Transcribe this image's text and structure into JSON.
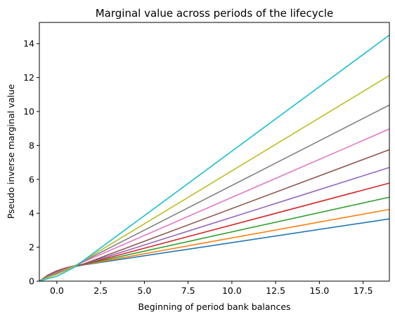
{
  "chart_data": {
    "type": "line",
    "title": "Marginal value across periods of the lifecycle",
    "xlabel": "Beginning of period bank balances",
    "ylabel": "Pseudo inverse marginal value",
    "xlim": [
      -1.0,
      19.0
    ],
    "ylim": [
      0,
      15.25
    ],
    "xticks": [
      0.0,
      2.5,
      5.0,
      7.5,
      10.0,
      12.5,
      15.0,
      17.5
    ],
    "xtick_labels": [
      "0.0",
      "2.5",
      "5.0",
      "7.5",
      "10.0",
      "12.5",
      "15.0",
      "17.5"
    ],
    "yticks": [
      0,
      2,
      4,
      6,
      8,
      10,
      12,
      14
    ],
    "ytick_labels": [
      "0",
      "2",
      "4",
      "6",
      "8",
      "10",
      "12",
      "14"
    ],
    "grid": false,
    "legend": "none",
    "series": [
      {
        "color": "#1f77b4",
        "x": [
          -1.0,
          -0.5,
          0.0,
          0.5,
          1.0,
          1.5,
          19.0
        ],
        "y": [
          0.0,
          0.32,
          0.55,
          0.72,
          0.85,
          0.95,
          3.67
        ]
      },
      {
        "color": "#ff7f0e",
        "x": [
          -1.0,
          -0.5,
          0.0,
          0.5,
          1.0,
          1.5,
          19.0
        ],
        "y": [
          0.0,
          0.33,
          0.57,
          0.74,
          0.87,
          0.96,
          4.23
        ]
      },
      {
        "color": "#2ca02c",
        "x": [
          -1.0,
          -0.5,
          0.0,
          0.5,
          1.0,
          1.5,
          19.0
        ],
        "y": [
          0.0,
          0.34,
          0.58,
          0.75,
          0.88,
          0.97,
          4.95
        ]
      },
      {
        "color": "#d62728",
        "x": [
          -1.0,
          -0.5,
          0.0,
          0.5,
          1.0,
          1.5,
          19.0
        ],
        "y": [
          0.0,
          0.35,
          0.59,
          0.76,
          0.89,
          0.98,
          5.78
        ]
      },
      {
        "color": "#9467bd",
        "x": [
          -1.0,
          -0.5,
          0.0,
          0.5,
          1.0,
          1.5,
          19.0
        ],
        "y": [
          0.0,
          0.36,
          0.6,
          0.77,
          0.9,
          0.99,
          6.7
        ]
      },
      {
        "color": "#8c564b",
        "x": [
          -1.0,
          -0.5,
          0.0,
          0.5,
          1.0,
          1.5,
          19.0
        ],
        "y": [
          0.0,
          0.37,
          0.61,
          0.78,
          0.91,
          1.0,
          7.75
        ]
      },
      {
        "color": "#e377c2",
        "x": [
          -1.0,
          -0.5,
          0.0,
          0.5,
          1.0,
          19.0
        ],
        "y": [
          0.0,
          0.3,
          0.5,
          0.72,
          0.9,
          8.97
        ]
      },
      {
        "color": "#7f7f7f",
        "x": [
          -1.0,
          -0.5,
          0.0,
          0.5,
          1.0,
          19.0
        ],
        "y": [
          0.0,
          0.28,
          0.46,
          0.68,
          0.9,
          10.38
        ]
      },
      {
        "color": "#bcbd22",
        "x": [
          -1.0,
          -0.5,
          0.0,
          0.5,
          1.0,
          19.0
        ],
        "y": [
          0.0,
          0.22,
          0.4,
          0.63,
          0.88,
          12.12
        ]
      },
      {
        "color": "#17becf",
        "x": [
          -1.0,
          -0.5,
          0.0,
          0.5,
          1.0,
          19.0
        ],
        "y": [
          0.0,
          0.15,
          0.28,
          0.55,
          0.82,
          14.5
        ]
      }
    ]
  }
}
